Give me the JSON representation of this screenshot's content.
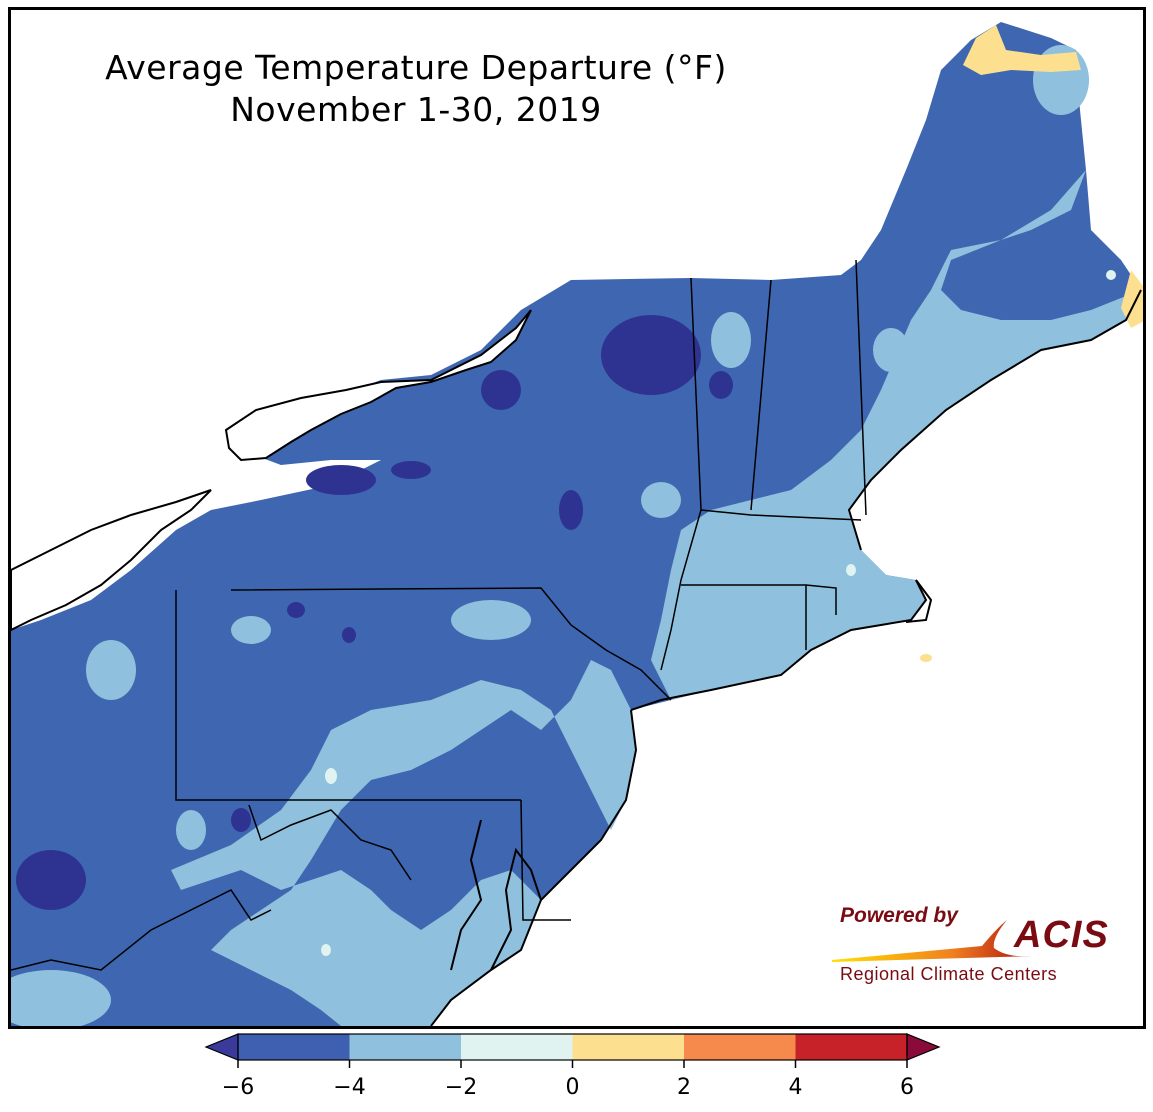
{
  "title": {
    "line1": "Average Temperature Departure (°F)",
    "line2": "November 1-30, 2019"
  },
  "legend": {
    "ticks": [
      "−6",
      "−4",
      "−2",
      "0",
      "2",
      "4",
      "6"
    ],
    "bins": [
      {
        "from": -6,
        "to": -4,
        "color": "#3f5fb0"
      },
      {
        "from": -4,
        "to": -2,
        "color": "#8fc0dd"
      },
      {
        "from": -2,
        "to": 0,
        "color": "#e0f3f0"
      },
      {
        "from": 0,
        "to": 2,
        "color": "#fde08f"
      },
      {
        "from": 2,
        "to": 4,
        "color": "#f68a4c"
      },
      {
        "from": 4,
        "to": 6,
        "color": "#c7212a"
      }
    ],
    "under_color": "#3a3a9a",
    "over_color": "#8a0b3a"
  },
  "logo": {
    "powered_by": "Powered by",
    "name": "ACIS",
    "subtitle": "Regional Climate Centers"
  },
  "map_colors": {
    "water": "#ffffff",
    "below_minus4": "#3f67b1",
    "minus4_to_minus2": "#8fc0dd",
    "minus2_to_0": "#e0f3f0",
    "zero_to_2": "#fde08f",
    "below_minus6": "#2e3392",
    "state_border": "#000000",
    "county_border": "#5a78b8"
  }
}
